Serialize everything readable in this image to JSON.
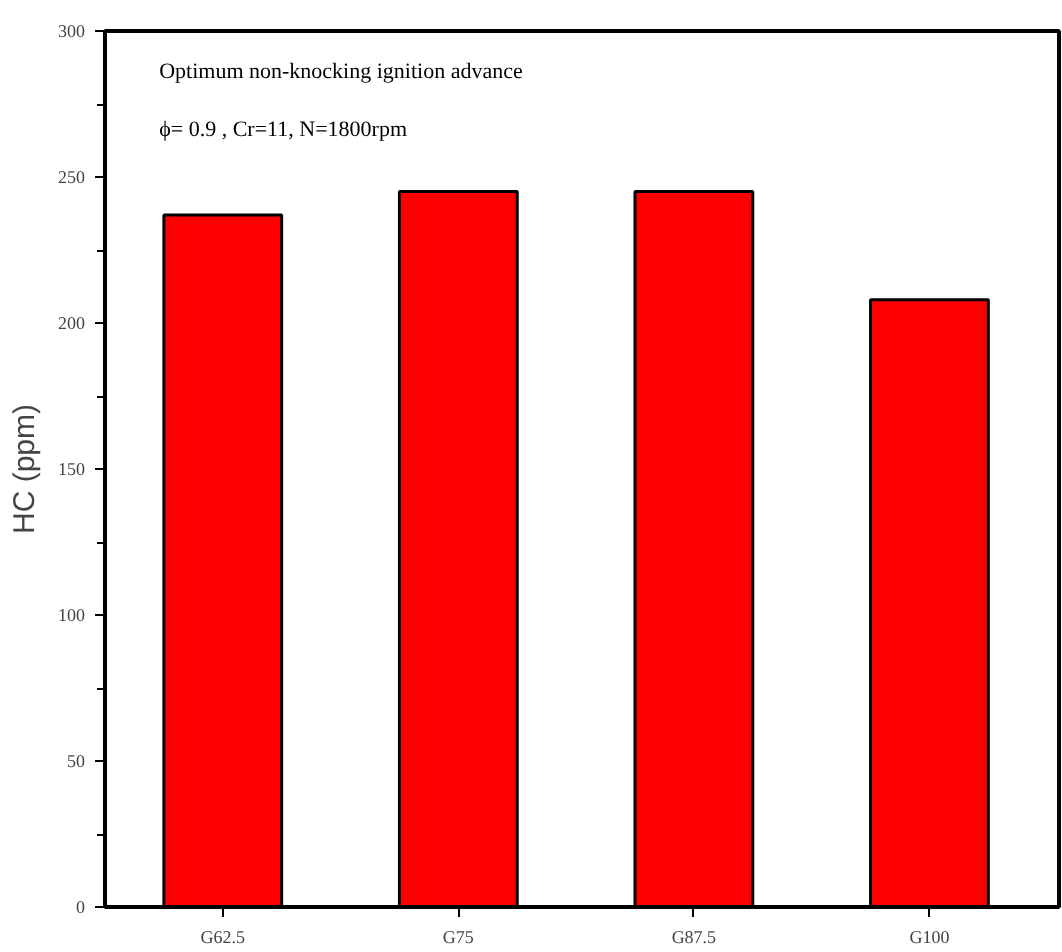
{
  "chart_data": {
    "type": "bar",
    "ylabel": "HC (ppm)",
    "categories": [
      "G62.5",
      "G75",
      "G87.5",
      "G100"
    ],
    "values": [
      237,
      245,
      245,
      208
    ],
    "color": "#ff0000",
    "ylim": [
      0,
      300
    ],
    "yticks": [
      0,
      50,
      100,
      150,
      200,
      250,
      300
    ],
    "grid": false,
    "annotations": [
      "Optimum non-knocking ignition advance",
      "ϕ= 0.9 , Cr=11, N=1800rpm"
    ]
  }
}
